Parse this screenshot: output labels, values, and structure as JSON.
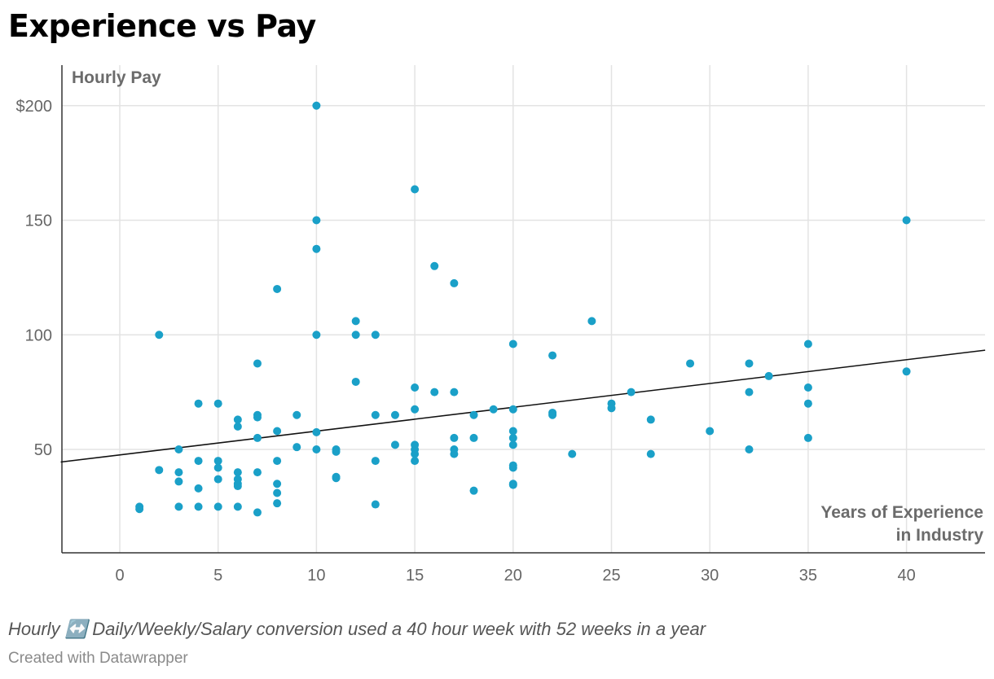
{
  "title": "Experience vs Pay",
  "footnote": "Hourly ↔️ Daily/Weekly/Salary conversion used a 40 hour week with 52 weeks in a year",
  "credit": "Created with Datawrapper",
  "chart_data": {
    "type": "scatter",
    "ylabel": "Hourly Pay",
    "xlabel_lines": [
      "Years of Experience",
      "in Industry"
    ],
    "xlim": [
      -3,
      44
    ],
    "ylim": [
      10,
      215
    ],
    "x_ticks": [
      0,
      5,
      10,
      15,
      20,
      25,
      30,
      35,
      40
    ],
    "x_tick_labels": [
      "0",
      "5",
      "10",
      "15",
      "20",
      "25",
      "30",
      "35",
      "40"
    ],
    "y_ticks": [
      50,
      100,
      150,
      200
    ],
    "y_tick_labels": [
      "50",
      "100",
      "150",
      "$200"
    ],
    "grid": true,
    "point_color": "#1aa0c8",
    "trendline_color": "#111111",
    "trendline": {
      "x": [
        -3,
        44
      ],
      "y": [
        44.5,
        93.3
      ]
    },
    "points": [
      [
        1,
        25
      ],
      [
        1,
        24
      ],
      [
        2,
        100
      ],
      [
        2,
        41
      ],
      [
        3,
        50
      ],
      [
        3,
        40
      ],
      [
        3,
        36
      ],
      [
        3,
        25
      ],
      [
        4,
        70
      ],
      [
        4,
        45
      ],
      [
        4,
        33
      ],
      [
        4,
        25
      ],
      [
        5,
        70
      ],
      [
        5,
        45
      ],
      [
        5,
        42
      ],
      [
        5,
        37
      ],
      [
        5,
        25
      ],
      [
        6,
        63
      ],
      [
        6,
        60
      ],
      [
        6,
        40
      ],
      [
        6,
        37
      ],
      [
        6,
        35
      ],
      [
        6,
        34
      ],
      [
        6,
        25
      ],
      [
        7,
        87.5
      ],
      [
        7,
        65
      ],
      [
        7,
        64
      ],
      [
        7,
        55
      ],
      [
        7,
        40
      ],
      [
        7,
        22.5
      ],
      [
        8,
        120
      ],
      [
        8,
        58
      ],
      [
        8,
        45
      ],
      [
        8,
        35
      ],
      [
        8,
        31
      ],
      [
        8,
        26.5
      ],
      [
        9,
        65
      ],
      [
        9,
        51
      ],
      [
        10,
        200
      ],
      [
        10,
        150
      ],
      [
        10,
        137.5
      ],
      [
        10,
        100
      ],
      [
        10,
        57.5
      ],
      [
        10,
        50
      ],
      [
        11,
        50
      ],
      [
        11,
        49
      ],
      [
        11,
        38
      ],
      [
        11,
        37.5
      ],
      [
        12,
        106
      ],
      [
        12,
        100
      ],
      [
        12,
        79.5
      ],
      [
        13,
        100
      ],
      [
        13,
        65
      ],
      [
        13,
        45
      ],
      [
        13,
        26
      ],
      [
        14,
        65
      ],
      [
        14,
        52
      ],
      [
        15,
        163.5
      ],
      [
        15,
        77
      ],
      [
        15,
        67.5
      ],
      [
        15,
        52
      ],
      [
        15,
        50
      ],
      [
        15,
        48
      ],
      [
        15,
        45
      ],
      [
        16,
        130
      ],
      [
        16,
        75
      ],
      [
        17,
        122.5
      ],
      [
        17,
        75
      ],
      [
        17,
        55
      ],
      [
        17,
        50
      ],
      [
        17,
        48
      ],
      [
        18,
        65
      ],
      [
        18,
        55
      ],
      [
        18,
        32
      ],
      [
        19,
        67.5
      ],
      [
        20,
        96
      ],
      [
        20,
        67.5
      ],
      [
        20,
        58
      ],
      [
        20,
        55
      ],
      [
        20,
        52
      ],
      [
        20,
        43
      ],
      [
        20,
        42
      ],
      [
        20,
        35
      ],
      [
        20,
        34.5
      ],
      [
        22,
        91
      ],
      [
        22,
        66
      ],
      [
        22,
        65
      ],
      [
        23,
        48
      ],
      [
        24,
        106
      ],
      [
        25,
        70
      ],
      [
        25,
        68
      ],
      [
        26,
        75
      ],
      [
        27,
        63
      ],
      [
        27,
        48
      ],
      [
        29,
        87.5
      ],
      [
        30,
        58
      ],
      [
        32,
        87.5
      ],
      [
        32,
        75
      ],
      [
        32,
        50
      ],
      [
        33,
        82
      ],
      [
        35,
        96
      ],
      [
        35,
        77
      ],
      [
        35,
        70
      ],
      [
        35,
        55
      ],
      [
        40,
        150
      ],
      [
        40,
        84
      ]
    ]
  }
}
